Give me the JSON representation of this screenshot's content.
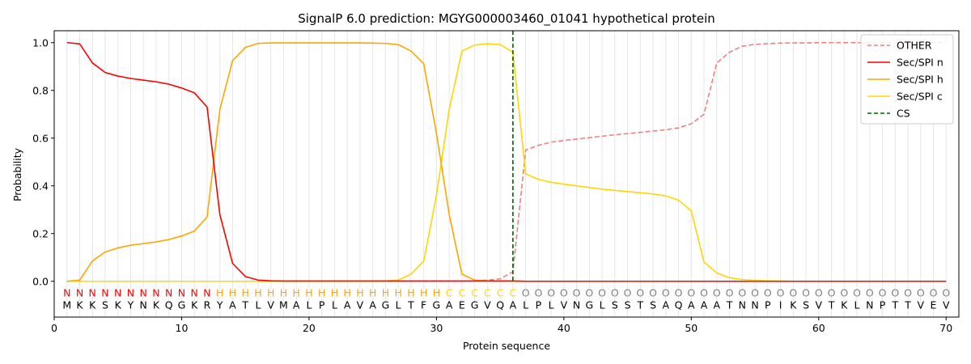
{
  "chart_data": {
    "type": "line",
    "title": "SignalP 6.0 prediction: MGYG000003460_01041 hypothetical protein",
    "xlabel": "Protein sequence",
    "ylabel": "Probability",
    "xlim": [
      0,
      71
    ],
    "ylim": [
      -0.15,
      1.05
    ],
    "xticks": [
      0,
      10,
      20,
      30,
      40,
      50,
      60,
      70
    ],
    "yticks": [
      0.0,
      0.2,
      0.4,
      0.6,
      0.8,
      1.0
    ],
    "grid": "vertical lines at each residue",
    "legend_position": "top-right",
    "sequence": "MKKSKYNKQGKRYATLVMALPLAVAGLTFGAEGVQALPLVNGLSSTSAQAAATNNPIKSVTKLNPTTVEV",
    "labels": "NNNNNNNNNNNNHHHHHHHHHHHHHHHHHHCCCCCCOOOOOOOOOOOOOOOOOOOOOOOOOOOOOOOOOO",
    "label_colors": {
      "N": "#ff0000",
      "H": "#ffa500",
      "C": "#ffd700",
      "O": "#808080"
    },
    "cleavage_site": 36,
    "series": [
      {
        "name": "OTHER",
        "color": "#f08080",
        "style": "dashed",
        "values": [
          0.0,
          0.0,
          0.0,
          0.0,
          0.0,
          0.0,
          0.0,
          0.0,
          0.0,
          0.0,
          0.0,
          0.0,
          0.0,
          0.0,
          0.0,
          0.0,
          0.0,
          0.0,
          0.0,
          0.0,
          0.0,
          0.0,
          0.0,
          0.0,
          0.0,
          0.0,
          0.0,
          0.0,
          0.0,
          0.0,
          0.0,
          0.0,
          0.002,
          0.005,
          0.01,
          0.04,
          0.55,
          0.57,
          0.583,
          0.59,
          0.596,
          0.602,
          0.608,
          0.614,
          0.619,
          0.624,
          0.63,
          0.635,
          0.643,
          0.66,
          0.7,
          0.915,
          0.96,
          0.985,
          0.993,
          0.996,
          0.998,
          0.999,
          0.999,
          1.0,
          1.0,
          1.0,
          1.0,
          1.0,
          1.0,
          1.0,
          1.0,
          1.0,
          1.0,
          1.0
        ]
      },
      {
        "name": "Sec/SPI n",
        "color": "#ff0000",
        "style": "solid",
        "values": [
          1.0,
          0.995,
          0.915,
          0.875,
          0.86,
          0.85,
          0.843,
          0.836,
          0.826,
          0.81,
          0.79,
          0.73,
          0.28,
          0.075,
          0.02,
          0.005,
          0.002,
          0.001,
          0.001,
          0.001,
          0.001,
          0.001,
          0.001,
          0.001,
          0.001,
          0.001,
          0.001,
          0.001,
          0.001,
          0.001,
          0.001,
          0.001,
          0.001,
          0.001,
          0.001,
          0.001,
          0.0,
          0.0,
          0.0,
          0.0,
          0.0,
          0.0,
          0.0,
          0.0,
          0.0,
          0.0,
          0.0,
          0.0,
          0.0,
          0.0,
          0.0,
          0.0,
          0.0,
          0.0,
          0.0,
          0.0,
          0.0,
          0.0,
          0.0,
          0.0,
          0.0,
          0.0,
          0.0,
          0.0,
          0.0,
          0.0,
          0.0,
          0.0,
          0.0,
          0.0
        ]
      },
      {
        "name": "Sec/SPI h",
        "color": "#ffa500",
        "style": "solid",
        "values": [
          0.0,
          0.005,
          0.085,
          0.123,
          0.14,
          0.151,
          0.158,
          0.165,
          0.175,
          0.19,
          0.21,
          0.27,
          0.72,
          0.925,
          0.98,
          0.997,
          0.999,
          0.999,
          0.999,
          0.999,
          0.999,
          0.999,
          0.999,
          0.999,
          0.998,
          0.997,
          0.992,
          0.965,
          0.912,
          0.62,
          0.28,
          0.03,
          0.005,
          0.002,
          0.001,
          0.001,
          0.0,
          0.0,
          0.0,
          0.0,
          0.0,
          0.0,
          0.0,
          0.0,
          0.0,
          0.0,
          0.0,
          0.0,
          0.0,
          0.0,
          0.0,
          0.0,
          0.0,
          0.0,
          0.0,
          0.0,
          0.0,
          0.0,
          0.0,
          0.0,
          0.0,
          0.0,
          0.0,
          0.0,
          0.0,
          0.0,
          0.0,
          0.0,
          0.0,
          0.0
        ]
      },
      {
        "name": "Sec/SPI c",
        "color": "#ffd700",
        "style": "solid",
        "values": [
          0.0,
          0.0,
          0.0,
          0.0,
          0.0,
          0.0,
          0.0,
          0.0,
          0.0,
          0.0,
          0.0,
          0.0,
          0.0,
          0.0,
          0.0,
          0.0,
          0.0,
          0.0,
          0.0,
          0.0,
          0.0,
          0.0,
          0.0,
          0.0,
          0.0,
          0.001,
          0.005,
          0.03,
          0.085,
          0.36,
          0.72,
          0.965,
          0.99,
          0.995,
          0.992,
          0.96,
          0.45,
          0.427,
          0.415,
          0.407,
          0.4,
          0.393,
          0.386,
          0.381,
          0.376,
          0.371,
          0.366,
          0.358,
          0.34,
          0.295,
          0.08,
          0.035,
          0.015,
          0.007,
          0.004,
          0.002,
          0.001,
          0.0,
          0.0,
          0.0,
          0.0,
          0.0,
          0.0,
          0.0,
          0.0,
          0.0,
          0.0,
          0.0,
          0.0,
          0.0
        ]
      },
      {
        "name": "CS",
        "color": "#006400",
        "style": "dashed-vertical",
        "values": []
      }
    ]
  }
}
